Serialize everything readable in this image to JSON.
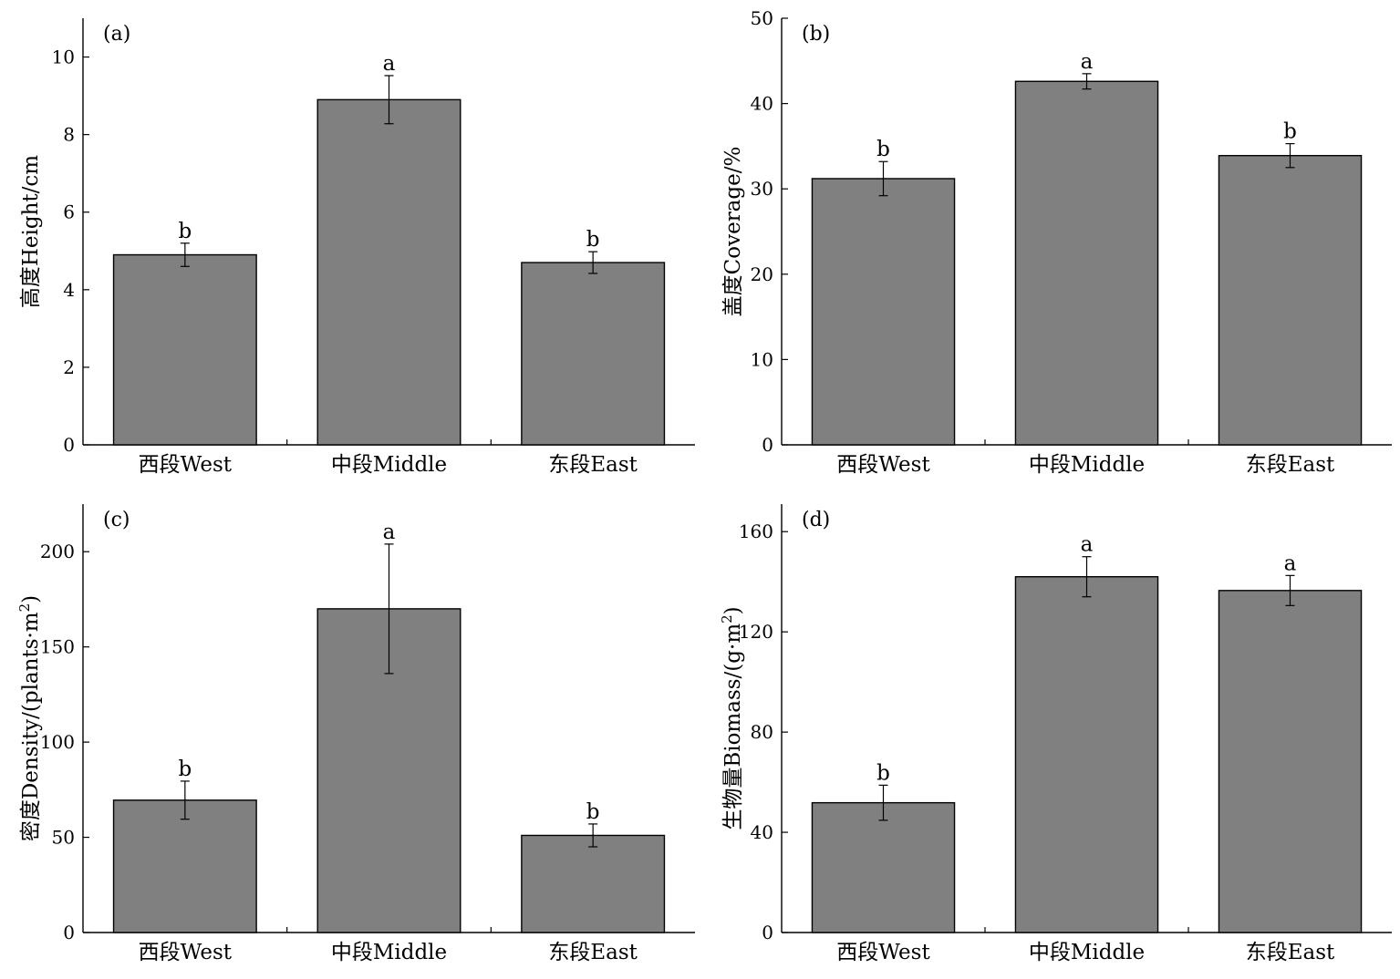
{
  "style": {
    "bar_color": "#808080",
    "edge_color": "#000000"
  },
  "chart_data": [
    {
      "type": "bar",
      "panel": "(a)",
      "categories": [
        "西段West",
        "中段Middle",
        "东段East"
      ],
      "values": [
        4.9,
        8.9,
        4.7
      ],
      "errors": [
        0.3,
        0.62,
        0.28
      ],
      "sig_letters": [
        "b",
        "a",
        "b"
      ],
      "ylabel": "高度Height/cm",
      "ylim": [
        0,
        11
      ],
      "yticks": [
        0,
        2,
        4,
        6,
        8,
        10
      ]
    },
    {
      "type": "bar",
      "panel": "(b)",
      "categories": [
        "西段West",
        "中段Middle",
        "东段East"
      ],
      "values": [
        31.2,
        42.6,
        33.9
      ],
      "errors": [
        2.0,
        0.9,
        1.4
      ],
      "sig_letters": [
        "b",
        "a",
        "b"
      ],
      "ylabel": "盖度Coverage/%",
      "ylim": [
        0,
        50
      ],
      "yticks": [
        0,
        10,
        20,
        30,
        40,
        50
      ]
    },
    {
      "type": "bar",
      "panel": "(c)",
      "categories": [
        "西段West",
        "中段Middle",
        "东段East"
      ],
      "values": [
        69.5,
        170,
        51
      ],
      "errors": [
        10,
        34,
        6
      ],
      "sig_letters": [
        "b",
        "a",
        "b"
      ],
      "ylabel": "密度Density/(plants·m",
      "ylabel_sup": "2",
      "ylabel_tail": ")",
      "ylim": [
        0,
        225
      ],
      "yticks": [
        0,
        50,
        100,
        150,
        200
      ]
    },
    {
      "type": "bar",
      "panel": "(d)",
      "categories": [
        "西段West",
        "中段Middle",
        "东段East"
      ],
      "values": [
        51.8,
        142,
        136.5
      ],
      "errors": [
        7,
        8,
        6
      ],
      "sig_letters": [
        "b",
        "a",
        "a"
      ],
      "ylabel": "生物量Biomass/(g·m",
      "ylabel_sup": "2",
      "ylabel_tail": ")",
      "ylim": [
        0,
        171
      ],
      "yticks": [
        0,
        40,
        80,
        120,
        160
      ]
    }
  ]
}
